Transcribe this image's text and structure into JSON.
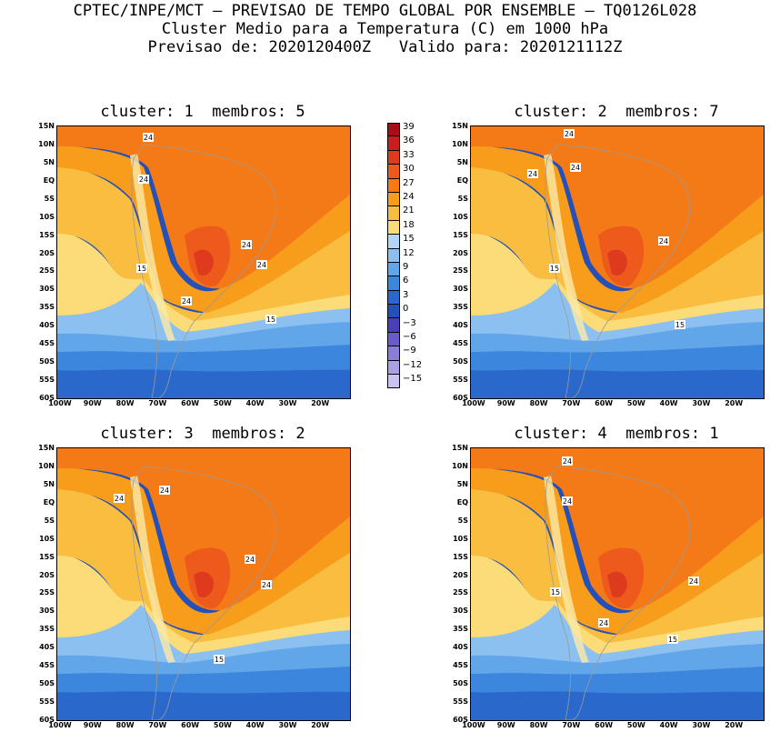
{
  "header": {
    "line1": "CPTEC/INPE/MCT — PREVISAO DE TEMPO GLOBAL POR ENSEMBLE — TQ0126L028",
    "line2": "Cluster Medio para a Temperatura (C) em 1000 hPa",
    "line3": "Previsao de: 2020120400Z   Valido para: 2020121112Z"
  },
  "panels": [
    {
      "title": "cluster: 1  membros: 5",
      "contour_labels": [
        "24",
        "24",
        "24",
        "24",
        "15",
        "24",
        "15"
      ]
    },
    {
      "title": "cluster: 2  membros: 7",
      "contour_labels": [
        "24",
        "24",
        "24",
        "24",
        "15",
        "15"
      ]
    },
    {
      "title": "cluster: 3  membros: 2",
      "contour_labels": [
        "24",
        "24",
        "24",
        "24",
        "15"
      ]
    },
    {
      "title": "cluster: 4  membros: 1",
      "contour_labels": [
        "24",
        "24",
        "24",
        "15",
        "24",
        "15"
      ]
    }
  ],
  "lat_ticks": [
    "15N",
    "10N",
    "5N",
    "EQ",
    "5S",
    "10S",
    "15S",
    "20S",
    "25S",
    "30S",
    "35S",
    "40S",
    "45S",
    "50S",
    "55S",
    "60S"
  ],
  "lon_ticks": [
    "100W",
    "90W",
    "80W",
    "70W",
    "60W",
    "50W",
    "40W",
    "30W",
    "20W"
  ],
  "colorbar": {
    "labels": [
      "39",
      "36",
      "33",
      "30",
      "27",
      "24",
      "21",
      "18",
      "15",
      "12",
      "9",
      "6",
      "3",
      "0",
      "−3",
      "−6",
      "−9",
      "−12",
      "−15"
    ],
    "colors": [
      "#a50f15",
      "#c81e1e",
      "#de3a1e",
      "#ee5a1c",
      "#f47a18",
      "#f89c1c",
      "#f9be40",
      "#fbdc78",
      "#b3d6f6",
      "#8cc0f0",
      "#62a6ea",
      "#3c86de",
      "#2a68cc",
      "#2450b8",
      "#4a3fb8",
      "#6a5cc8",
      "#8a7fd8",
      "#ad9fe6",
      "#ccc2f2"
    ]
  }
}
